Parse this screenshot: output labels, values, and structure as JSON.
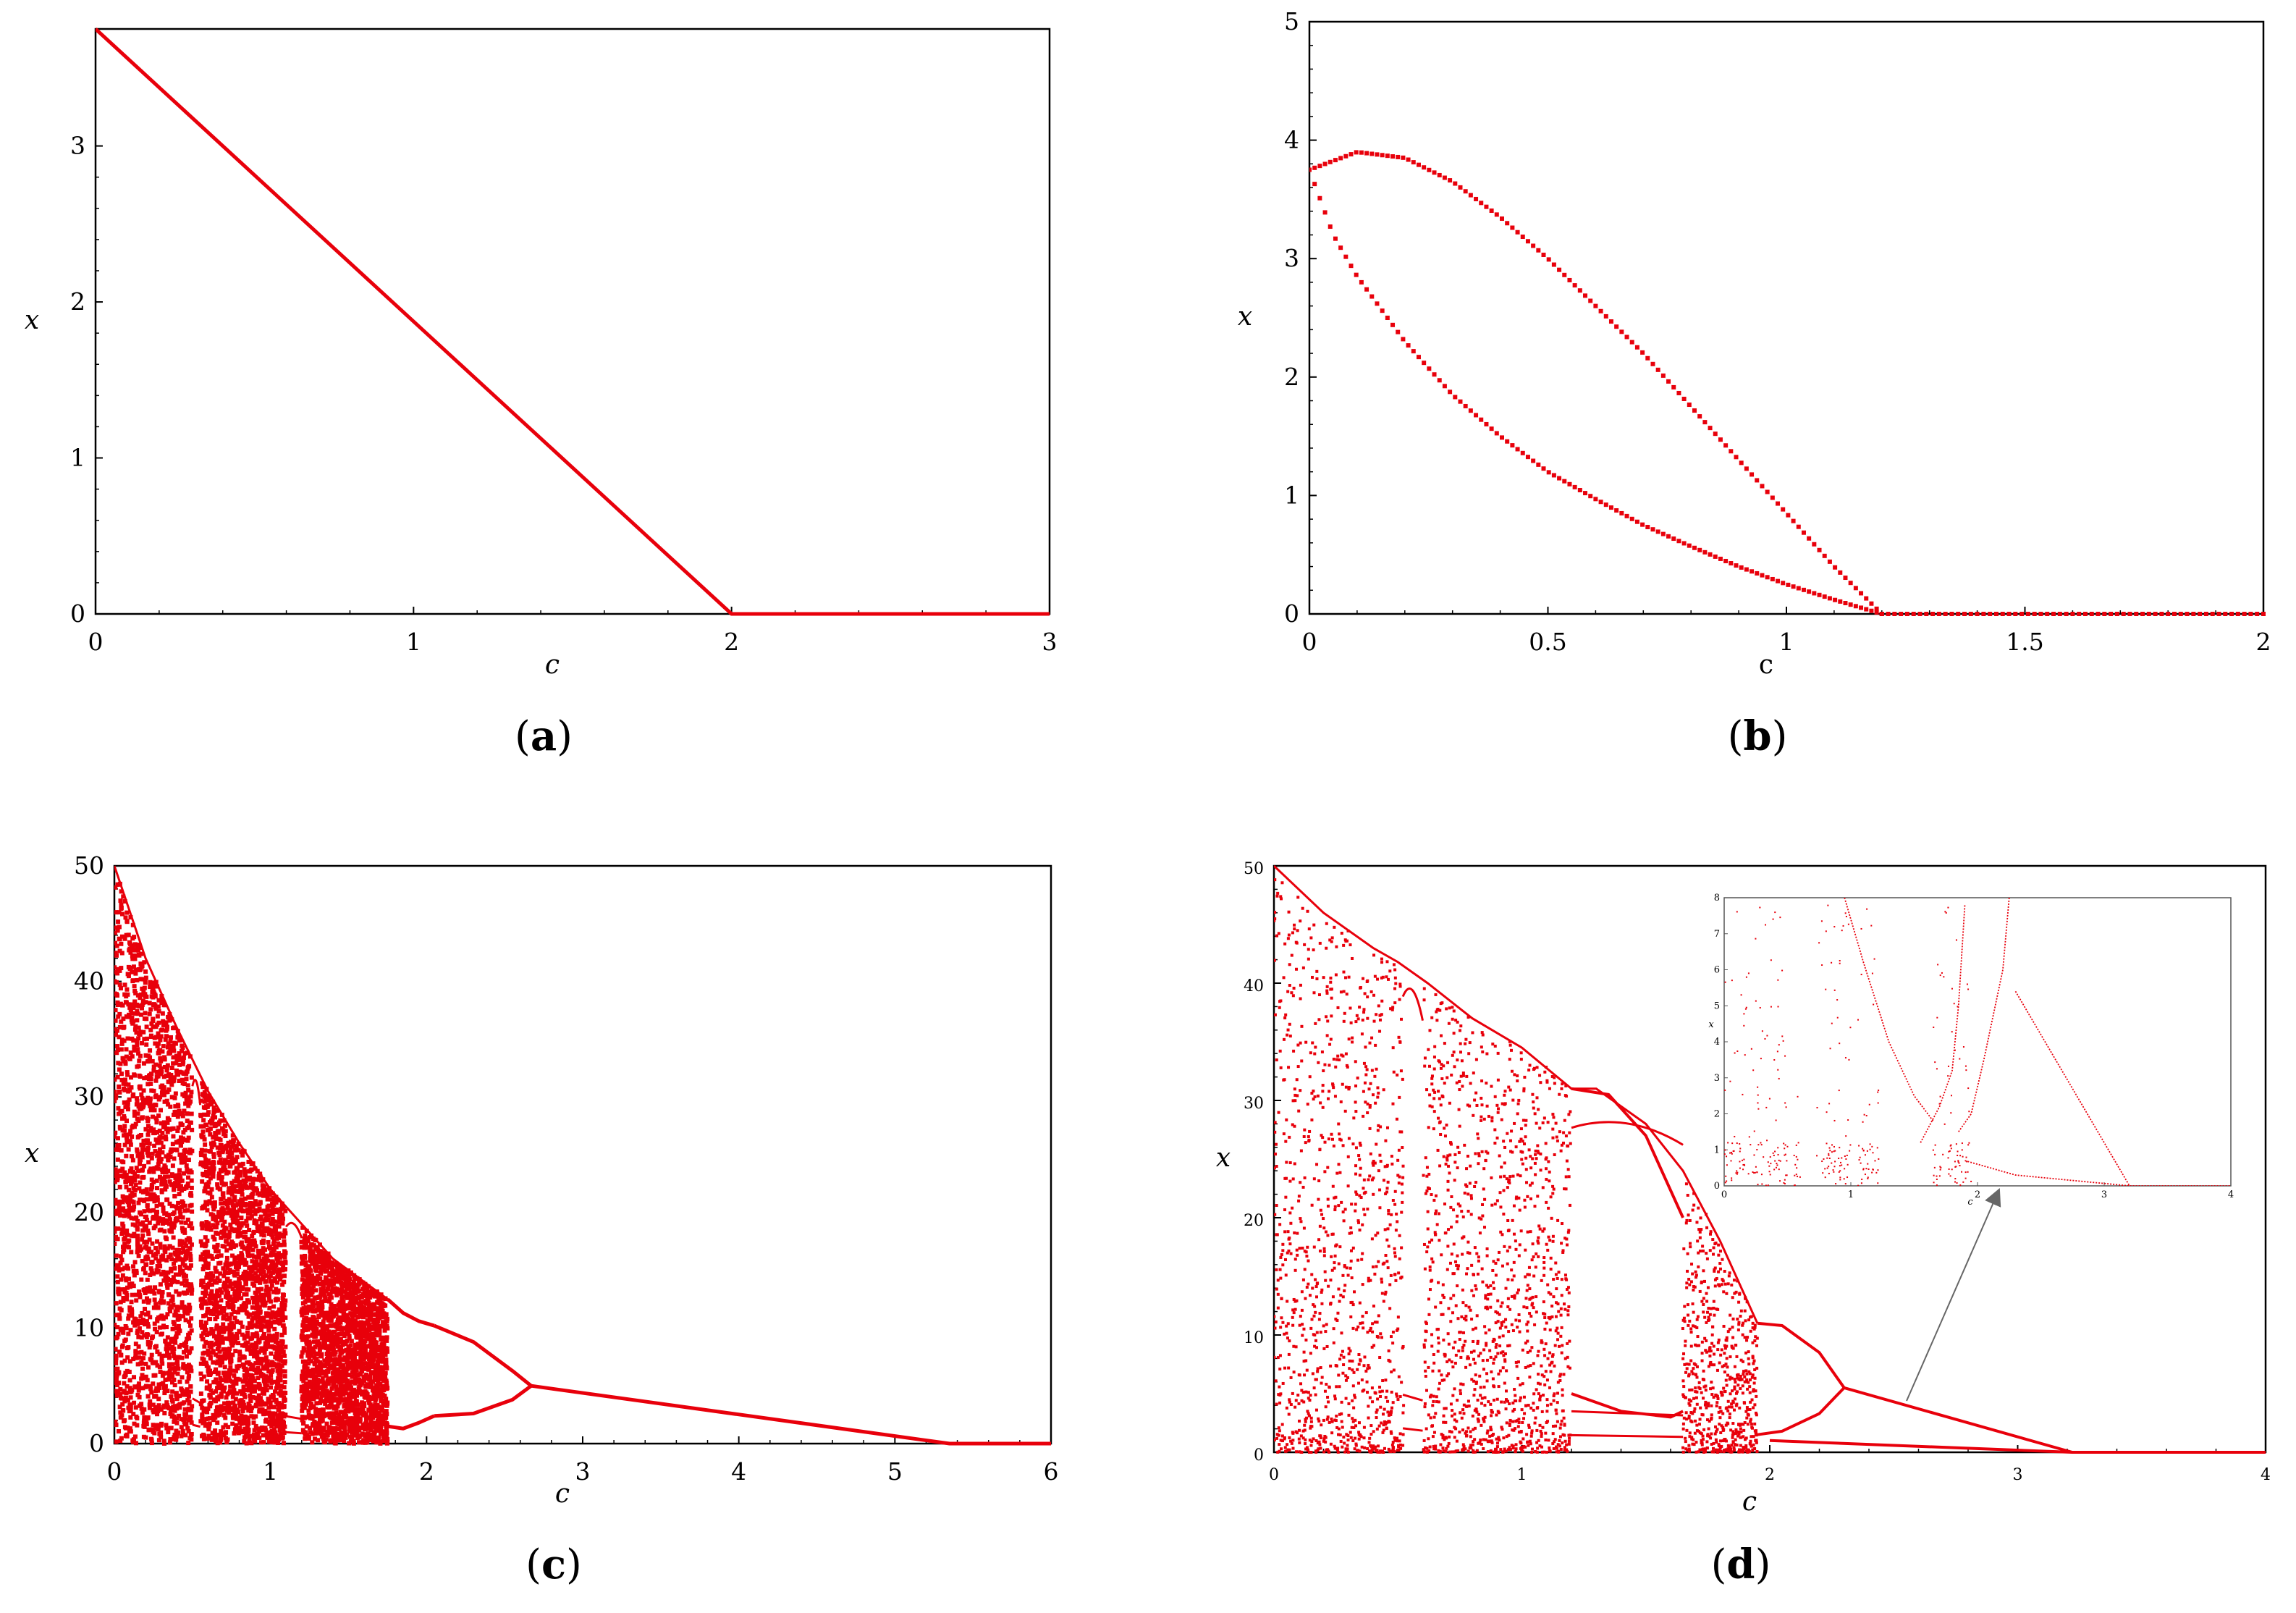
{
  "chart_data": [
    {
      "id": "a",
      "type": "line",
      "caption_letter": "a",
      "xlabel": "c",
      "ylabel": "x",
      "xlim": [
        0,
        3
      ],
      "ylim": [
        0,
        3.75
      ],
      "xticks": [
        "0",
        "1",
        "2",
        "3"
      ],
      "yticks": [
        "0",
        "1",
        "2",
        "3"
      ],
      "series": [
        {
          "color": "#e8000b",
          "points": [
            [
              0,
              3.75
            ],
            [
              2,
              0
            ],
            [
              3,
              0
            ]
          ]
        }
      ]
    },
    {
      "id": "b",
      "type": "scatter",
      "caption_letter": "b",
      "xlabel": "c",
      "ylabel": "x",
      "xlim": [
        0,
        2
      ],
      "ylim": [
        0,
        5
      ],
      "xticks": [
        "0",
        "0.5",
        "1",
        "1.5",
        "2"
      ],
      "yticks": [
        "0",
        "1",
        "2",
        "3",
        "4",
        "5"
      ],
      "series": [
        {
          "color": "#e8000b",
          "branch": "upper",
          "points": [
            [
              0,
              3.75
            ],
            [
              0.1,
              3.9
            ],
            [
              0.2,
              3.85
            ],
            [
              0.3,
              3.65
            ],
            [
              0.4,
              3.35
            ],
            [
              0.5,
              3.0
            ],
            [
              0.6,
              2.6
            ],
            [
              0.7,
              2.2
            ],
            [
              0.8,
              1.75
            ],
            [
              0.9,
              1.3
            ],
            [
              1.0,
              0.85
            ],
            [
              1.1,
              0.4
            ],
            [
              1.2,
              0.0
            ]
          ]
        },
        {
          "color": "#e8000b",
          "branch": "lower",
          "points": [
            [
              0,
              3.75
            ],
            [
              0.05,
              3.2
            ],
            [
              0.1,
              2.85
            ],
            [
              0.2,
              2.3
            ],
            [
              0.3,
              1.85
            ],
            [
              0.4,
              1.5
            ],
            [
              0.5,
              1.2
            ],
            [
              0.6,
              0.97
            ],
            [
              0.7,
              0.75
            ],
            [
              0.8,
              0.57
            ],
            [
              0.9,
              0.4
            ],
            [
              1.0,
              0.25
            ],
            [
              1.1,
              0.12
            ],
            [
              1.2,
              0.0
            ]
          ]
        },
        {
          "color": "#e8000b",
          "branch": "zero",
          "points": [
            [
              1.2,
              0
            ],
            [
              2,
              0
            ]
          ]
        }
      ]
    },
    {
      "id": "c",
      "type": "scatter",
      "caption_letter": "c",
      "xlabel": "c",
      "ylabel": "x",
      "xlim": [
        0,
        6
      ],
      "ylim": [
        0,
        50
      ],
      "xticks": [
        "0",
        "1",
        "2",
        "3",
        "4",
        "5",
        "6"
      ],
      "yticks": [
        "0",
        "10",
        "20",
        "30",
        "40",
        "50"
      ],
      "chaos_envelope": [
        [
          0,
          50
        ],
        [
          0.2,
          42
        ],
        [
          0.4,
          36
        ],
        [
          0.6,
          30.5
        ],
        [
          0.8,
          26
        ],
        [
          1.0,
          22
        ],
        [
          1.2,
          19
        ],
        [
          1.4,
          16
        ],
        [
          1.6,
          14
        ],
        [
          1.75,
          12.5
        ]
      ],
      "periodic_windows": [
        [
          0.5,
          0.55
        ],
        [
          1.1,
          1.2
        ]
      ],
      "branches": [
        [
          [
            1.75,
            12.5
          ],
          [
            1.85,
            11.3
          ],
          [
            1.95,
            10.6
          ],
          [
            2.05,
            10.2
          ]
        ],
        [
          [
            1.75,
            1.5
          ],
          [
            1.85,
            1.3
          ],
          [
            1.95,
            1.8
          ],
          [
            2.05,
            2.4
          ]
        ],
        [
          [
            2.05,
            10.2
          ],
          [
            2.3,
            8.8
          ],
          [
            2.55,
            6.3
          ],
          [
            2.67,
            5.0
          ]
        ],
        [
          [
            2.05,
            2.4
          ],
          [
            2.3,
            2.6
          ],
          [
            2.55,
            3.8
          ],
          [
            2.67,
            5.0
          ]
        ],
        [
          [
            2.67,
            5.0
          ],
          [
            5.35,
            0.0
          ],
          [
            6.0,
            0.0
          ]
        ]
      ]
    },
    {
      "id": "d",
      "type": "scatter",
      "caption_letter": "d",
      "xlabel": "c",
      "ylabel": "x",
      "xlim": [
        0,
        4
      ],
      "ylim": [
        0,
        50
      ],
      "xticks": [
        "0",
        "1",
        "2",
        "3",
        "4"
      ],
      "yticks": [
        "0",
        "10",
        "20",
        "30",
        "40",
        "50"
      ],
      "chaos_envelope": [
        [
          0,
          50
        ],
        [
          0.2,
          46
        ],
        [
          0.4,
          43
        ],
        [
          0.5,
          41.8
        ],
        [
          0.62,
          40
        ],
        [
          0.8,
          37
        ],
        [
          1.0,
          34.5
        ],
        [
          1.2,
          31
        ],
        [
          1.3,
          31
        ],
        [
          1.5,
          28
        ],
        [
          1.65,
          24
        ],
        [
          1.8,
          18
        ],
        [
          1.95,
          11
        ]
      ],
      "periodic_windows": [
        [
          0.52,
          0.6
        ],
        [
          1.2,
          1.65
        ]
      ],
      "branches": [
        [
          [
            1.95,
            11
          ],
          [
            2.05,
            10.8
          ],
          [
            2.2,
            8.5
          ],
          [
            2.3,
            5.5
          ]
        ],
        [
          [
            1.95,
            1.5
          ],
          [
            2.05,
            1.8
          ],
          [
            2.2,
            3.3
          ],
          [
            2.3,
            5.5
          ]
        ],
        [
          [
            1.2,
            31
          ],
          [
            1.35,
            30.5
          ],
          [
            1.5,
            27
          ],
          [
            1.65,
            20
          ]
        ],
        [
          [
            1.2,
            5
          ],
          [
            1.4,
            3.5
          ],
          [
            1.6,
            3
          ],
          [
            1.65,
            3.5
          ]
        ],
        [
          [
            2.3,
            5.5
          ],
          [
            3.22,
            0.0
          ],
          [
            4.0,
            0.0
          ]
        ],
        [
          [
            2.0,
            1.0
          ],
          [
            3.22,
            0.0
          ]
        ]
      ],
      "inset": {
        "xlim": [
          0,
          4
        ],
        "ylim": [
          0,
          8
        ],
        "xticks": [
          "0",
          "1",
          "2",
          "3",
          "4"
        ],
        "yticks": [
          "0",
          "1",
          "2",
          "3",
          "4",
          "5",
          "6",
          "7",
          "8"
        ],
        "xlabel": "c",
        "ylabel": "x",
        "bands": [
          [
            0.0,
            0.5
          ],
          [
            0.55,
            0.6
          ],
          [
            0.72,
            1.0
          ],
          [
            1.05,
            1.22
          ],
          [
            1.65,
            1.95
          ]
        ],
        "curves": [
          [
            [
              0.95,
              8
            ],
            [
              1.1,
              6.2
            ],
            [
              1.3,
              4.0
            ],
            [
              1.5,
              2.5
            ],
            [
              1.65,
              1.8
            ]
          ],
          [
            [
              2.25,
              8
            ],
            [
              2.2,
              6
            ],
            [
              2.05,
              3.5
            ],
            [
              1.95,
              2.0
            ],
            [
              1.85,
              1.5
            ]
          ],
          [
            [
              1.55,
              1.2
            ],
            [
              1.7,
              2.2
            ],
            [
              1.8,
              3.2
            ],
            [
              1.85,
              5.0
            ],
            [
              1.9,
              7.8
            ]
          ],
          [
            [
              2.3,
              5.4
            ],
            [
              3.2,
              0.0
            ],
            [
              4.0,
              0.0
            ]
          ],
          [
            [
              1.9,
              0.7
            ],
            [
              2.3,
              0.3
            ],
            [
              3.2,
              0.0
            ]
          ]
        ]
      }
    }
  ]
}
